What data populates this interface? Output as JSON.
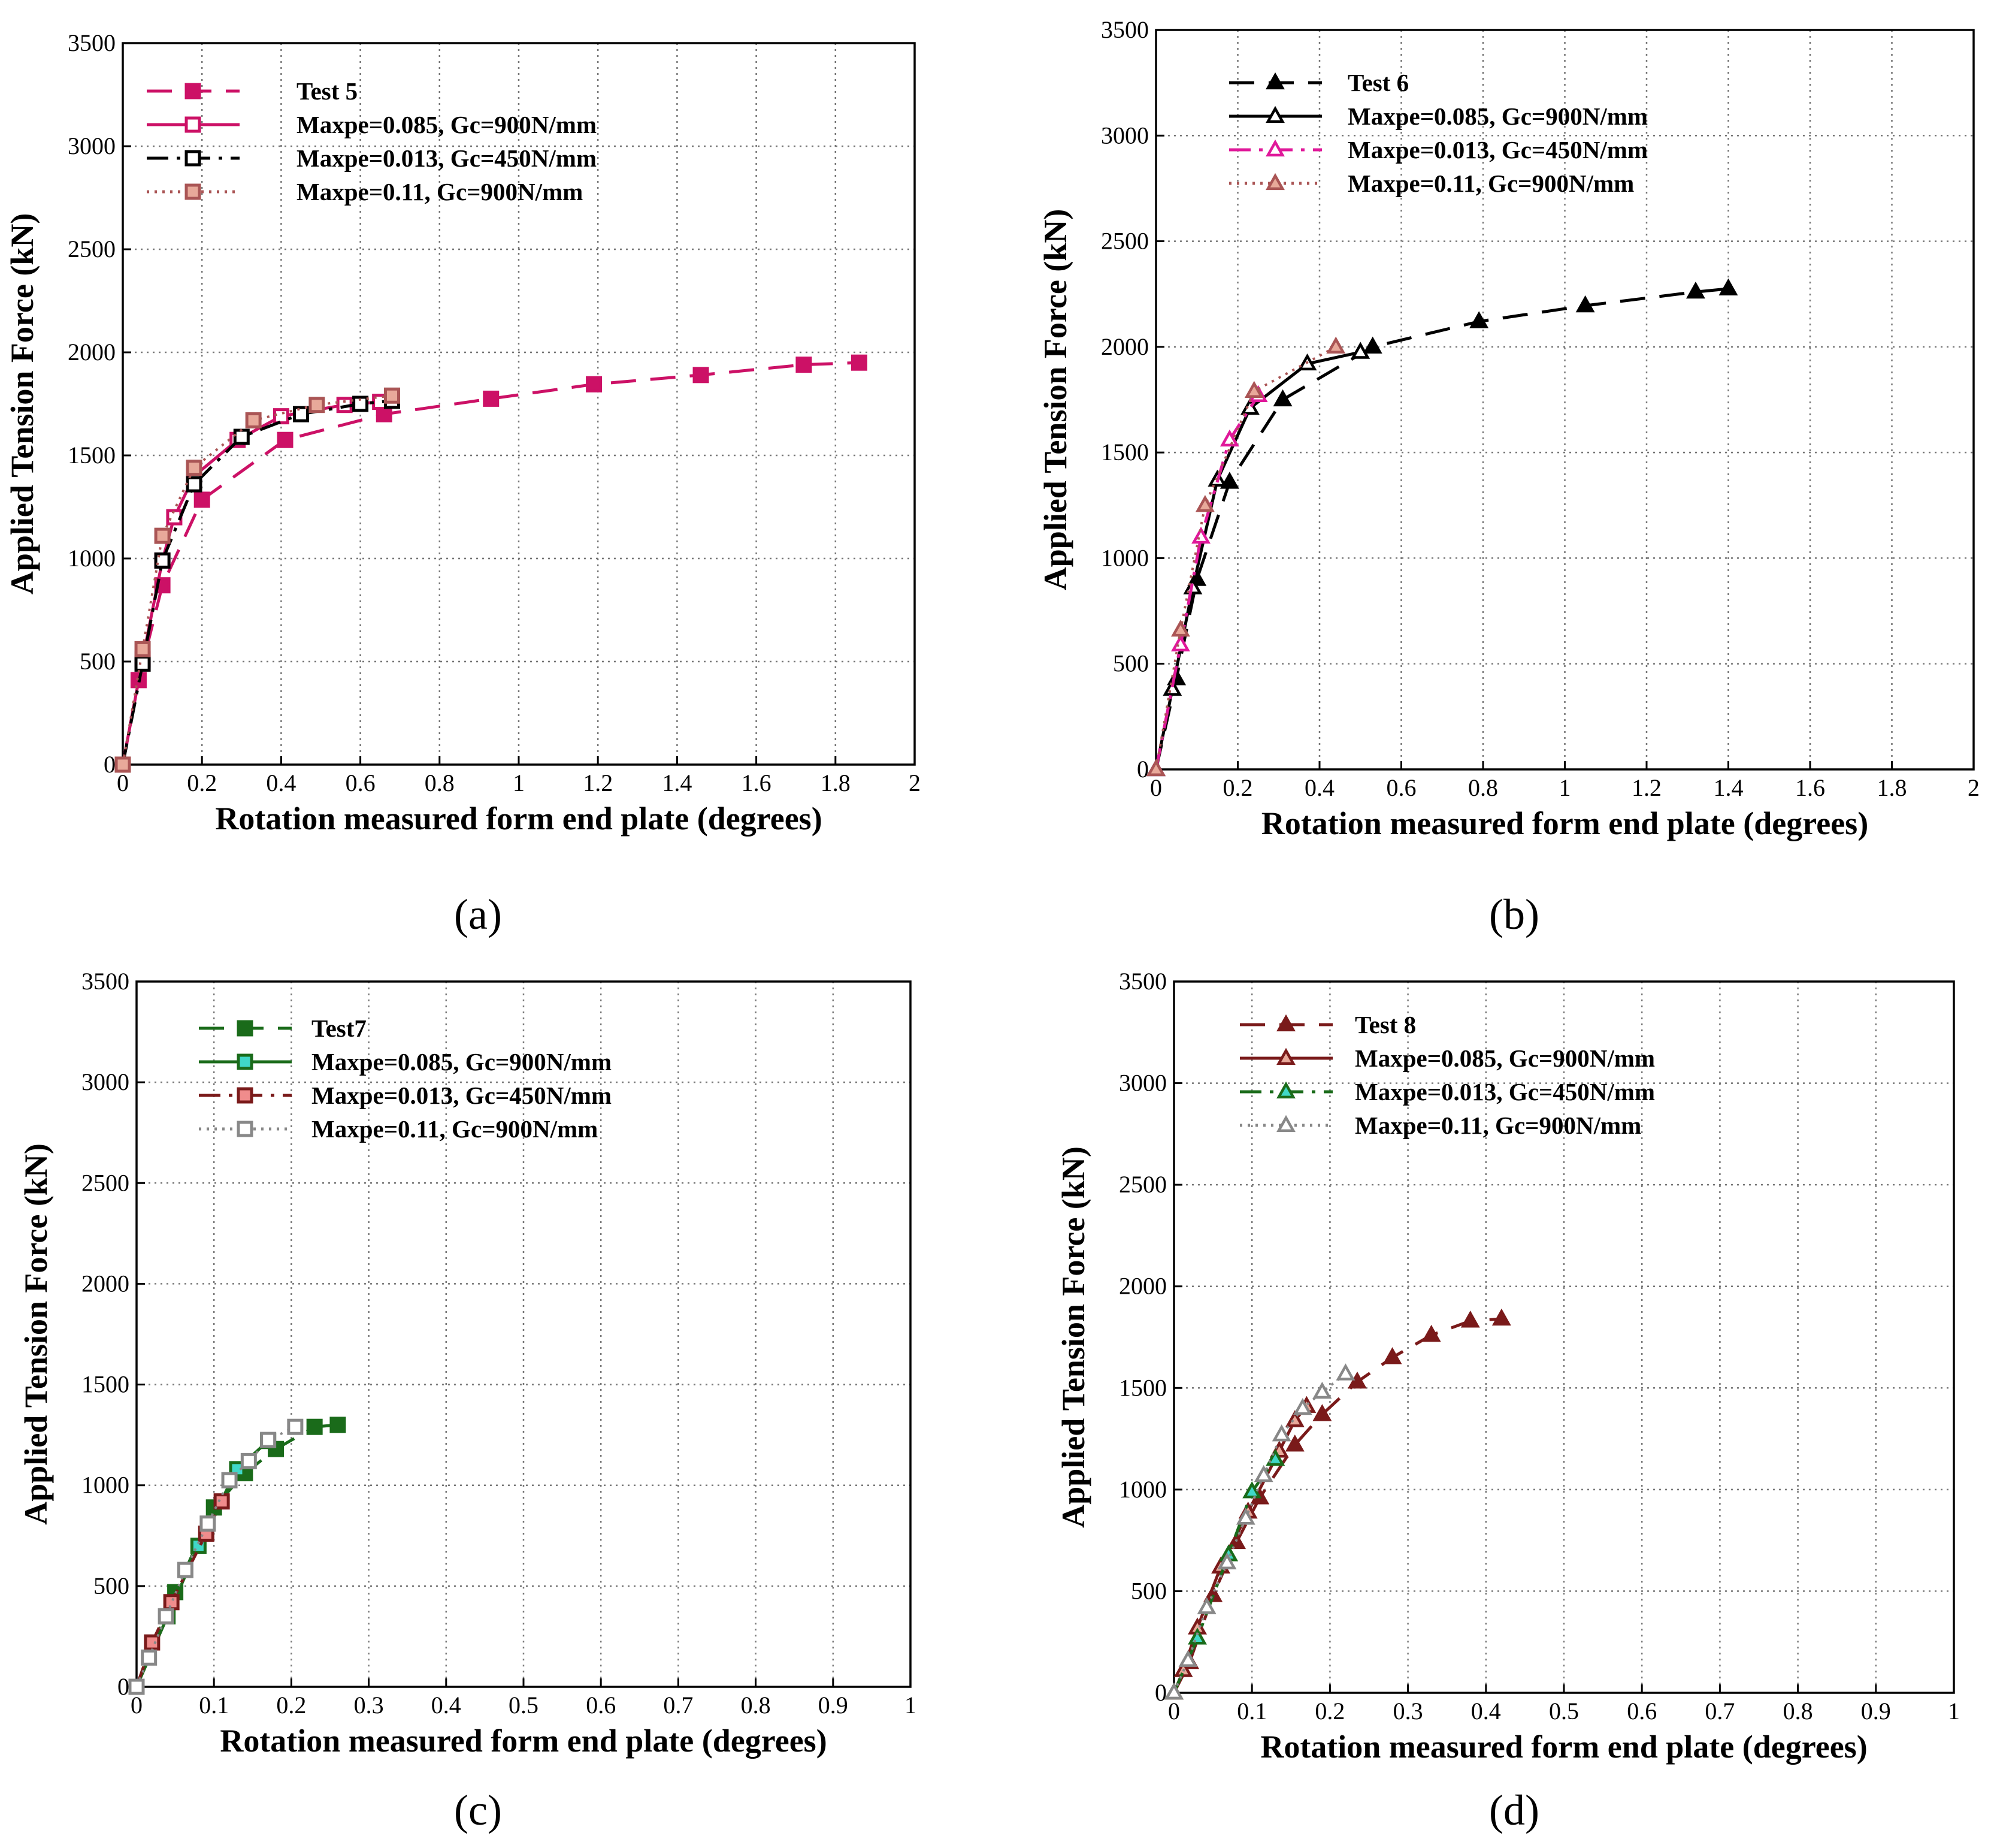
{
  "chart_data": [
    {
      "type": "line",
      "panel_label": "(a)",
      "xlabel": "Rotation measured form end plate (degrees)",
      "ylabel": "Applied Tension Force (kN)",
      "xlim": [
        0,
        2
      ],
      "ylim": [
        0,
        3500
      ],
      "x_ticks": [
        0,
        0.2,
        0.4,
        0.6,
        0.8,
        1,
        1.2,
        1.4,
        1.6,
        1.8,
        2
      ],
      "x_tick_labels": [
        "0",
        "0.2",
        "0.4",
        "0.6",
        "0.8",
        "1",
        "1.2",
        "1.4",
        "1.6",
        "1.8",
        "2"
      ],
      "y_ticks": [
        0,
        500,
        1000,
        1500,
        2000,
        2500,
        3000,
        3500
      ],
      "y_tick_labels": [
        "0",
        "500",
        "1000",
        "1500",
        "2000",
        "2500",
        "3000",
        "3500"
      ],
      "legend_position": "top-left",
      "series": [
        {
          "name": "Test 5",
          "color": "#cc1166",
          "dash": "dash",
          "marker": "square",
          "marker_filled": true,
          "marker_fill": "#cc1166",
          "x": [
            0,
            0.04,
            0.1,
            0.2,
            0.41,
            0.66,
            0.93,
            1.19,
            1.46,
            1.72,
            1.86
          ],
          "y": [
            0,
            410,
            870,
            1285,
            1575,
            1700,
            1775,
            1845,
            1890,
            1940,
            1950
          ]
        },
        {
          "name": "Maxpe=0.085, Gc=900N/mm",
          "color": "#cc1166",
          "dash": "solid",
          "marker": "square",
          "marker_filled": false,
          "marker_fill": "#ffffff",
          "x": [
            0,
            0.05,
            0.1,
            0.13,
            0.18,
            0.29,
            0.4,
            0.56,
            0.65
          ],
          "y": [
            0,
            510,
            990,
            1200,
            1400,
            1575,
            1690,
            1745,
            1760
          ]
        },
        {
          "name": "Maxpe=0.013, Gc=450N/mm",
          "color": "#000000",
          "dash": "dashdot",
          "marker": "square",
          "marker_filled": false,
          "marker_fill": "#ffffff",
          "x": [
            0,
            0.05,
            0.1,
            0.18,
            0.3,
            0.45,
            0.6,
            0.68
          ],
          "y": [
            0,
            490,
            990,
            1360,
            1590,
            1700,
            1750,
            1765
          ]
        },
        {
          "name": "Maxpe=0.11, Gc=900N/mm",
          "color": "#aa5555",
          "dash": "dot",
          "marker": "square",
          "marker_filled": true,
          "marker_fill": "#e8a99a",
          "x": [
            0,
            0.05,
            0.1,
            0.18,
            0.33,
            0.49,
            0.68
          ],
          "y": [
            0,
            560,
            1110,
            1440,
            1670,
            1745,
            1790
          ]
        }
      ]
    },
    {
      "type": "line",
      "panel_label": "(b)",
      "xlabel": "Rotation measured form end plate (degrees)",
      "ylabel": "Applied Tension Force (kN)",
      "xlim": [
        0,
        2
      ],
      "ylim": [
        0,
        3500
      ],
      "x_ticks": [
        0,
        0.2,
        0.4,
        0.6,
        0.8,
        1,
        1.2,
        1.4,
        1.6,
        1.8,
        2
      ],
      "x_tick_labels": [
        "0",
        "0.2",
        "0.4",
        "0.6",
        "0.8",
        "1",
        "1.2",
        "1.4",
        "1.6",
        "1.8",
        "2"
      ],
      "y_ticks": [
        0,
        500,
        1000,
        1500,
        2000,
        2500,
        3000,
        3500
      ],
      "y_tick_labels": [
        "0",
        "500",
        "1000",
        "1500",
        "2000",
        "2500",
        "3000",
        "3500"
      ],
      "legend_position": "top-left",
      "series": [
        {
          "name": "Test 6",
          "color": "#000000",
          "dash": "dash",
          "marker": "triangle",
          "marker_filled": true,
          "marker_fill": "#000000",
          "x": [
            0,
            0.05,
            0.1,
            0.18,
            0.31,
            0.53,
            0.79,
            1.05,
            1.32,
            1.4
          ],
          "y": [
            0,
            430,
            900,
            1360,
            1750,
            2000,
            2120,
            2195,
            2260,
            2275
          ]
        },
        {
          "name": "Maxpe=0.085, Gc=900N/mm",
          "color": "#000000",
          "dash": "solid",
          "marker": "triangle",
          "marker_filled": false,
          "marker_fill": "#ffffff",
          "x": [
            0,
            0.04,
            0.09,
            0.15,
            0.23,
            0.37,
            0.5
          ],
          "y": [
            0,
            380,
            860,
            1370,
            1710,
            1920,
            1975
          ]
        },
        {
          "name": "Maxpe=0.013, Gc=450N/mm",
          "color": "#e0189a",
          "dash": "dashdot",
          "marker": "triangle",
          "marker_filled": false,
          "marker_fill": "#ffffff",
          "x": [
            0,
            0.06,
            0.11,
            0.18,
            0.25
          ],
          "y": [
            0,
            590,
            1100,
            1560,
            1770
          ]
        },
        {
          "name": "Maxpe=0.11, Gc=900N/mm",
          "color": "#aa5555",
          "dash": "dot",
          "marker": "triangle",
          "marker_filled": true,
          "marker_fill": "#e8a99a",
          "x": [
            0,
            0.06,
            0.12,
            0.24,
            0.44
          ],
          "y": [
            0,
            660,
            1250,
            1790,
            2000
          ]
        }
      ]
    },
    {
      "type": "line",
      "panel_label": "(c)",
      "xlabel": "Rotation measured form end plate (degrees)",
      "ylabel": "Applied Tension Force (kN)",
      "xlim": [
        0,
        1
      ],
      "ylim": [
        0,
        3500
      ],
      "x_ticks": [
        0,
        0.1,
        0.2,
        0.3,
        0.4,
        0.5,
        0.6,
        0.7,
        0.8,
        0.9,
        1
      ],
      "x_tick_labels": [
        "0",
        "0.1",
        "0.2",
        "0.3",
        "0.4",
        "0.5",
        "0.6",
        "0.7",
        "0.8",
        "0.9",
        "1"
      ],
      "y_ticks": [
        0,
        500,
        1000,
        1500,
        2000,
        2500,
        3000,
        3500
      ],
      "y_tick_labels": [
        "0",
        "500",
        "1000",
        "1500",
        "2000",
        "2500",
        "3000",
        "3500"
      ],
      "legend_position": "top-left",
      "series": [
        {
          "name": "Test7",
          "color": "#1a6b1a",
          "dash": "dash",
          "marker": "square",
          "marker_filled": true,
          "marker_fill": "#1a6b1a",
          "x": [
            0,
            0.05,
            0.1,
            0.14,
            0.18,
            0.23,
            0.26
          ],
          "y": [
            0,
            470,
            890,
            1060,
            1180,
            1290,
            1300
          ]
        },
        {
          "name": "Maxpe=0.085, Gc=900N/mm",
          "color": "#1a6b1a",
          "dash": "solid",
          "marker": "square",
          "marker_filled": true,
          "marker_fill": "#40d8c8",
          "x": [
            0,
            0.04,
            0.08,
            0.13,
            0.17
          ],
          "y": [
            0,
            350,
            700,
            1080,
            1220
          ]
        },
        {
          "name": "Maxpe=0.013, Gc=450N/mm",
          "color": "#7a1a1a",
          "dash": "dashdot",
          "marker": "square",
          "marker_filled": true,
          "marker_fill": "#f08c8c",
          "x": [
            0,
            0.02,
            0.045,
            0.09,
            0.11
          ],
          "y": [
            0,
            220,
            420,
            760,
            920
          ]
        },
        {
          "name": "Maxpe=0.11, Gc=900N/mm",
          "color": "#888888",
          "dash": "dot",
          "marker": "square",
          "marker_filled": false,
          "marker_fill": "#ffffff",
          "x": [
            0,
            0.016,
            0.038,
            0.063,
            0.092,
            0.12,
            0.145,
            0.17,
            0.205
          ],
          "y": [
            0,
            145,
            350,
            580,
            810,
            1025,
            1120,
            1225,
            1290
          ]
        }
      ]
    },
    {
      "type": "line",
      "panel_label": "(d)",
      "xlabel": "Rotation measured form end plate (degrees)",
      "ylabel": "Applied Tension Force (kN)",
      "xlim": [
        0,
        1
      ],
      "ylim": [
        0,
        3500
      ],
      "x_ticks": [
        0,
        0.1,
        0.2,
        0.3,
        0.4,
        0.5,
        0.6,
        0.7,
        0.8,
        0.9,
        1
      ],
      "x_tick_labels": [
        "0",
        "0.1",
        "0.2",
        "0.3",
        "0.4",
        "0.5",
        "0.6",
        "0.7",
        "0.8",
        "0.9",
        "1"
      ],
      "y_ticks": [
        0,
        500,
        1000,
        1500,
        2000,
        2500,
        3000,
        3500
      ],
      "y_tick_labels": [
        "0",
        "500",
        "1000",
        "1500",
        "2000",
        "2500",
        "3000",
        "3500"
      ],
      "legend_position": "top-left",
      "series": [
        {
          "name": "Test 8",
          "color": "#7a1a1a",
          "dash": "dash",
          "marker": "triangle",
          "marker_filled": true,
          "marker_fill": "#7a1a1a",
          "x": [
            0,
            0.02,
            0.05,
            0.08,
            0.11,
            0.155,
            0.19,
            0.235,
            0.28,
            0.33,
            0.38,
            0.42
          ],
          "y": [
            0,
            150,
            480,
            740,
            960,
            1220,
            1370,
            1530,
            1650,
            1760,
            1830,
            1840
          ]
        },
        {
          "name": "Maxpe=0.085, Gc=900N/mm",
          "color": "#7a1a1a",
          "dash": "solid",
          "marker": "triangle",
          "marker_filled": true,
          "marker_fill": "#e8a99a",
          "x": [
            0,
            0.012,
            0.03,
            0.06,
            0.095,
            0.135,
            0.155,
            0.17
          ],
          "y": [
            0,
            110,
            320,
            620,
            890,
            1190,
            1340,
            1410
          ]
        },
        {
          "name": "Maxpe=0.013, Gc=450N/mm",
          "color": "#1a6b1a",
          "dash": "dashdot",
          "marker": "triangle",
          "marker_filled": true,
          "marker_fill": "#40d8c8",
          "x": [
            0,
            0.03,
            0.07,
            0.1,
            0.13
          ],
          "y": [
            0,
            270,
            680,
            990,
            1150
          ]
        },
        {
          "name": "Maxpe=0.11, Gc=900N/mm",
          "color": "#888888",
          "dash": "dot",
          "marker": "triangle",
          "marker_filled": false,
          "marker_fill": "#ffffff",
          "x": [
            0,
            0.018,
            0.042,
            0.068,
            0.092,
            0.115,
            0.138,
            0.165,
            0.19,
            0.22
          ],
          "y": [
            0,
            160,
            420,
            640,
            860,
            1070,
            1270,
            1400,
            1480,
            1570
          ]
        }
      ]
    }
  ]
}
